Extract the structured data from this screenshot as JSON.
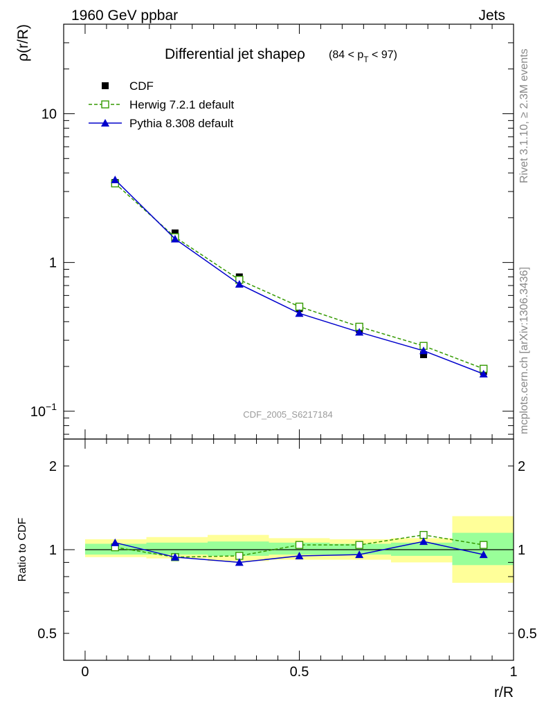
{
  "header": {
    "left": "1960 GeV ppbar",
    "right": "Jets"
  },
  "side_labels": {
    "top": "Rivet 3.1.10, ≥ 2.3M events",
    "bottom": "mcplots.cern.ch [arXiv:1306.3436]"
  },
  "watermark": "CDF_2005_S6217184",
  "chart_data": [
    {
      "type": "line",
      "title": "Differential jet shapeρ",
      "title_cut": {
        "open": "(84 < p",
        "sub": "T",
        "close": " < 97)"
      },
      "ylabel": "ρ(r/R)",
      "yscale": "log",
      "ylim": [
        0.065,
        40
      ],
      "xlim": [
        -0.05,
        1.0
      ],
      "yticks": [
        {
          "value": 10,
          "label": "10"
        },
        {
          "value": 1,
          "label": "1"
        },
        {
          "value": 0.1,
          "label": "10",
          "sup": "−1"
        }
      ],
      "x": [
        0.07,
        0.21,
        0.36,
        0.5,
        0.64,
        0.79,
        0.93
      ],
      "series": [
        {
          "name": "CDF",
          "marker": "filled-square",
          "color": "#000000",
          "values": [
            3.45,
            1.58,
            0.8,
            0.49,
            0.355,
            0.24,
            0.185
          ]
        },
        {
          "name": "Herwig 7.2.1 default",
          "marker": "open-square",
          "line": "dashed",
          "color": "#339900",
          "values": [
            3.4,
            1.48,
            0.765,
            0.505,
            0.37,
            0.275,
            0.193
          ]
        },
        {
          "name": "Pythia 8.308 default",
          "marker": "filled-triangle",
          "line": "solid",
          "color": "#0000cc",
          "values": [
            3.6,
            1.44,
            0.715,
            0.455,
            0.34,
            0.255,
            0.178
          ]
        }
      ]
    },
    {
      "type": "line",
      "ylabel": "Ratio to CDF",
      "xlabel": "r/R",
      "yscale": "log",
      "ylim": [
        0.4,
        2.5
      ],
      "xlim": [
        -0.05,
        1.0
      ],
      "yticks": [
        {
          "value": 2,
          "label": "2"
        },
        {
          "value": 1,
          "label": "1"
        },
        {
          "value": 0.5,
          "label": "0.5"
        }
      ],
      "xticks": [
        {
          "value": 0,
          "label": "0"
        },
        {
          "value": 0.5,
          "label": "0.5"
        },
        {
          "value": 1,
          "label": "1"
        }
      ],
      "bands": {
        "x_edges": [
          0,
          0.143,
          0.286,
          0.429,
          0.571,
          0.714,
          0.857,
          1.0
        ],
        "stat": [
          [
            0.96,
            1.05
          ],
          [
            0.96,
            1.06
          ],
          [
            0.95,
            1.07
          ],
          [
            0.96,
            1.06
          ],
          [
            0.96,
            1.05
          ],
          [
            0.95,
            1.06
          ],
          [
            0.88,
            1.15
          ]
        ],
        "total": [
          [
            0.94,
            1.09
          ],
          [
            0.93,
            1.11
          ],
          [
            0.91,
            1.13
          ],
          [
            0.92,
            1.1
          ],
          [
            0.92,
            1.09
          ],
          [
            0.9,
            1.1
          ],
          [
            0.76,
            1.32
          ]
        ],
        "stat_color": "#99ff99",
        "total_color": "#ffff99"
      },
      "x": [
        0.07,
        0.21,
        0.36,
        0.5,
        0.64,
        0.79,
        0.93
      ],
      "series": [
        {
          "name": "Herwig 7.2.1 default",
          "marker": "open-square",
          "line": "dashed",
          "color": "#339900",
          "values": [
            1.02,
            0.94,
            0.95,
            1.04,
            1.04,
            1.13,
            1.04
          ]
        },
        {
          "name": "Pythia 8.308 default",
          "marker": "filled-triangle",
          "line": "solid",
          "color": "#0000cc",
          "values": [
            1.06,
            0.94,
            0.9,
            0.95,
            0.96,
            1.07,
            0.96
          ]
        }
      ]
    }
  ]
}
